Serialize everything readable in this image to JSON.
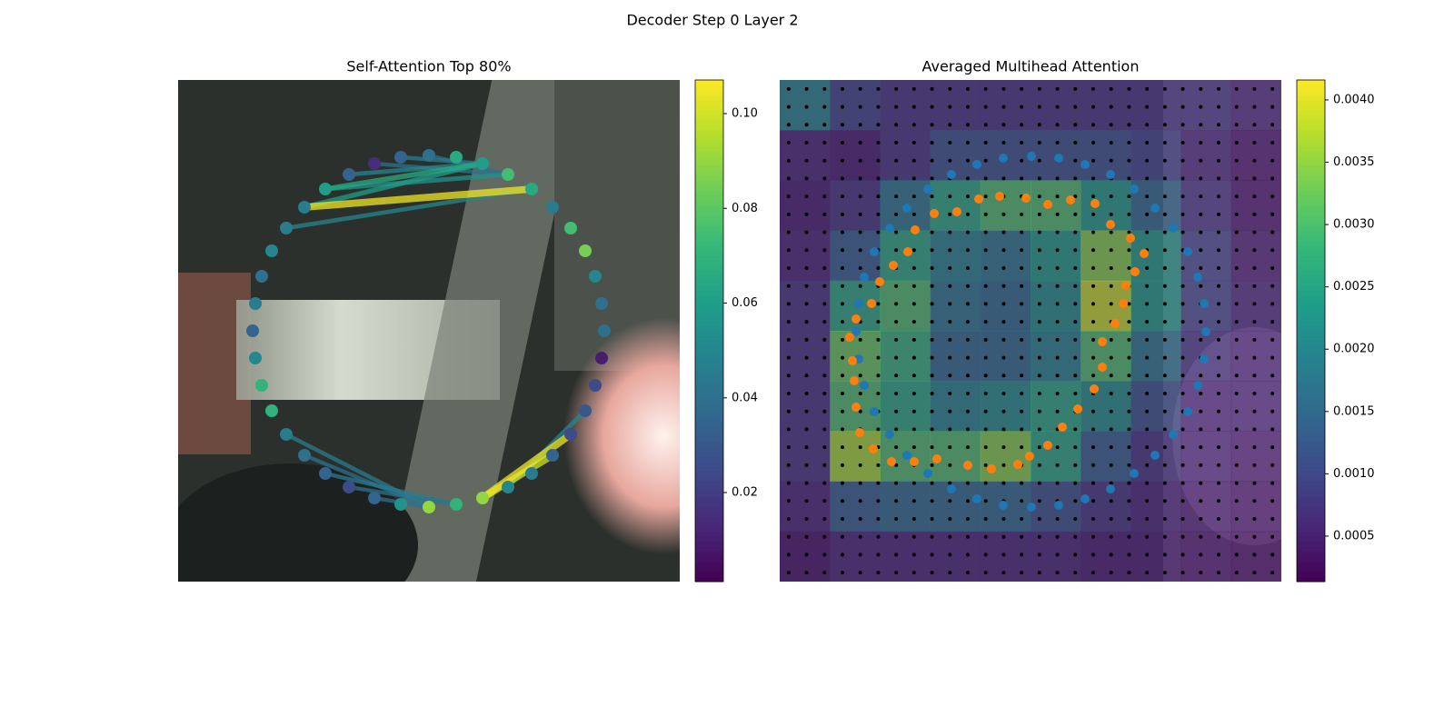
{
  "title": "Decoder Step 0 Layer 2",
  "chart_data": [
    {
      "type": "graph",
      "title": "Self-Attention Top 80%",
      "colormap": "viridis",
      "xlim": [
        0,
        552
      ],
      "ylim": [
        552,
        0
      ],
      "nodes": {
        "x": [
          276,
          306,
          335,
          363,
          389,
          412,
          432,
          448,
          459,
          466,
          469,
          466,
          459,
          448,
          432,
          412,
          389,
          363,
          335,
          306,
          276,
          245,
          216,
          188,
          162,
          139,
          119,
          103,
          92,
          85,
          82,
          85,
          92,
          103,
          119,
          139,
          162,
          188,
          216,
          245
        ],
        "y": [
          83,
          85,
          92,
          104,
          120,
          140,
          163,
          188,
          216,
          246,
          276,
          306,
          336,
          364,
          390,
          413,
          433,
          448,
          460,
          467,
          470,
          467,
          460,
          448,
          433,
          413,
          390,
          364,
          336,
          306,
          276,
          246,
          216,
          188,
          163,
          140,
          120,
          104,
          92,
          85
        ],
        "values": [
          0.04,
          0.065,
          0.06,
          0.075,
          0.065,
          0.045,
          0.075,
          0.085,
          0.05,
          0.04,
          0.04,
          0.01,
          0.025,
          0.03,
          0.025,
          0.035,
          0.045,
          0.05,
          0.09,
          0.07,
          0.09,
          0.055,
          0.035,
          0.025,
          0.035,
          0.04,
          0.045,
          0.07,
          0.07,
          0.05,
          0.035,
          0.045,
          0.04,
          0.05,
          0.045,
          0.045,
          0.06,
          0.035,
          0.015,
          0.035
        ]
      },
      "edges": {
        "from": [
          35,
          35,
          36,
          36,
          34,
          37,
          38,
          0,
          39,
          18,
          18,
          17,
          20,
          20,
          19,
          19,
          20
        ],
        "to": [
          4,
          2,
          2,
          3,
          4,
          2,
          3,
          3,
          2,
          14,
          15,
          13,
          25,
          26,
          24,
          23,
          22
        ],
        "values": [
          0.105,
          0.06,
          0.065,
          0.055,
          0.05,
          0.05,
          0.04,
          0.04,
          0.045,
          0.105,
          0.1,
          0.05,
          0.04,
          0.045,
          0.045,
          0.04,
          0.04
        ]
      },
      "clim": [
        0.0012,
        0.1071
      ],
      "cticks": [
        0.02,
        0.04,
        0.06,
        0.08,
        {
          "value": 0.1,
          "label": "0.10"
        }
      ]
    },
    {
      "type": "heatmap",
      "title": "Averaged Multihead Attention",
      "colormap": "viridis",
      "xlim": [
        0,
        552
      ],
      "ylim": [
        552,
        0
      ],
      "values": [
        [
          0.002,
          0.001,
          0.0008,
          0.0008,
          0.0008,
          0.0008,
          0.0008,
          0.0008,
          0.0008,
          0.0006
        ],
        [
          0.0006,
          0.0005,
          0.0008,
          0.0012,
          0.0012,
          0.0012,
          0.0012,
          0.001,
          0.0006,
          0.0004
        ],
        [
          0.0005,
          0.0008,
          0.0018,
          0.0026,
          0.003,
          0.003,
          0.0024,
          0.0016,
          0.0008,
          0.0004
        ],
        [
          0.0006,
          0.0014,
          0.0026,
          0.002,
          0.0018,
          0.0024,
          0.0034,
          0.0024,
          0.001,
          0.0005
        ],
        [
          0.0008,
          0.0026,
          0.003,
          0.0018,
          0.0016,
          0.0022,
          0.0038,
          0.0024,
          0.001,
          0.0006
        ],
        [
          0.0008,
          0.0032,
          0.0028,
          0.0016,
          0.0016,
          0.002,
          0.003,
          0.0018,
          0.0008,
          0.0006
        ],
        [
          0.0008,
          0.003,
          0.0026,
          0.002,
          0.0022,
          0.0026,
          0.0022,
          0.0012,
          0.0006,
          0.0006
        ],
        [
          0.0008,
          0.0036,
          0.003,
          0.003,
          0.0034,
          0.0026,
          0.0014,
          0.0008,
          0.0006,
          0.0005
        ],
        [
          0.0006,
          0.0014,
          0.0016,
          0.0016,
          0.0016,
          0.0012,
          0.0008,
          0.0006,
          0.0005,
          0.0004
        ],
        [
          0.0004,
          0.0006,
          0.0006,
          0.0006,
          0.0006,
          0.0006,
          0.0005,
          0.0005,
          0.0004,
          0.0003
        ]
      ],
      "series": [
        {
          "color": "#1f77b4",
          "x": [
            277,
            307,
            336,
            364,
            390,
            413,
            433,
            449,
            460,
            467,
            469,
            467,
            460,
            449,
            433,
            413,
            390,
            364,
            336,
            307,
            277,
            246,
            217,
            189,
            163,
            140,
            121,
            104,
            93,
            87,
            84,
            87,
            93,
            104,
            121,
            140,
            163,
            189,
            217,
            246
          ],
          "y": [
            84,
            86,
            93,
            104,
            120,
            141,
            163,
            189,
            217,
            246,
            277,
            307,
            336,
            365,
            390,
            413,
            433,
            450,
            461,
            468,
            470,
            468,
            461,
            450,
            433,
            413,
            390,
            365,
            336,
            307,
            277,
            246,
            217,
            189,
            163,
            141,
            120,
            104,
            93,
            86
          ]
        },
        {
          "color": "#ff7f0e",
          "x": [
            242,
            271,
            295,
            320,
            347,
            364,
            386,
            401,
            391,
            381,
            378,
            369,
            355,
            355,
            346,
            328,
            311,
            295,
            275,
            262,
            233,
            207,
            173,
            148,
            123,
            103,
            88,
            84,
            82,
            80,
            77,
            84,
            101,
            110,
            125,
            141,
            149,
            170,
            195,
            219
          ],
          "y": [
            128,
            130,
            137,
            132,
            136,
            159,
            174,
            191,
            211,
            226,
            246,
            268,
            288,
            316,
            340,
            362,
            382,
            402,
            414,
            423,
            428,
            424,
            417,
            420,
            420,
            406,
            388,
            360,
            331,
            309,
            283,
            263,
            246,
            222,
            204,
            189,
            165,
            147,
            145,
            131
          ]
        }
      ],
      "clim": [
        0.000135,
        0.00416
      ],
      "cticks": [
        0.0005,
        {
          "value": 0.001,
          "label": "0.0010"
        },
        0.0015,
        {
          "value": 0.002,
          "label": "0.0020"
        },
        0.0025,
        {
          "value": 0.003,
          "label": "0.0030"
        },
        0.0035,
        {
          "value": 0.004,
          "label": "0.0040"
        }
      ]
    }
  ]
}
